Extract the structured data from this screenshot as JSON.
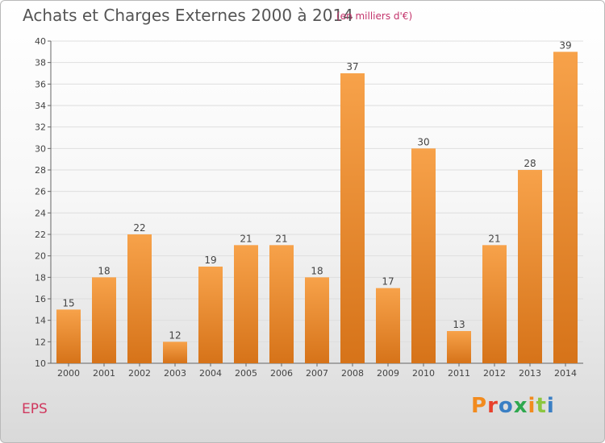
{
  "title": "Achats et Charges Externes 2000 à 2014",
  "subtitle": "(en milliers d'€)",
  "footer": {
    "commune": "EPS",
    "logo_text": "Proxiti"
  },
  "colors": {
    "bar_light": "#f7a24a",
    "bar_dark": "#d67319",
    "grid": "#dedede"
  },
  "chart_data": {
    "type": "bar",
    "title": "Achats et Charges Externes 2000 à 2014",
    "subtitle": "(en milliers d'€)",
    "xlabel": "",
    "ylabel": "",
    "categories": [
      "2000",
      "2001",
      "2002",
      "2003",
      "2004",
      "2005",
      "2006",
      "2007",
      "2008",
      "2009",
      "2010",
      "2011",
      "2012",
      "2013",
      "2014"
    ],
    "values": [
      15,
      18,
      22,
      12,
      19,
      21,
      21,
      18,
      37,
      17,
      30,
      13,
      21,
      28,
      39
    ],
    "ylim": [
      10,
      40
    ],
    "yticks": [
      10,
      12,
      14,
      16,
      18,
      20,
      22,
      24,
      26,
      28,
      30,
      32,
      34,
      36,
      38,
      40
    ],
    "grid": true
  }
}
